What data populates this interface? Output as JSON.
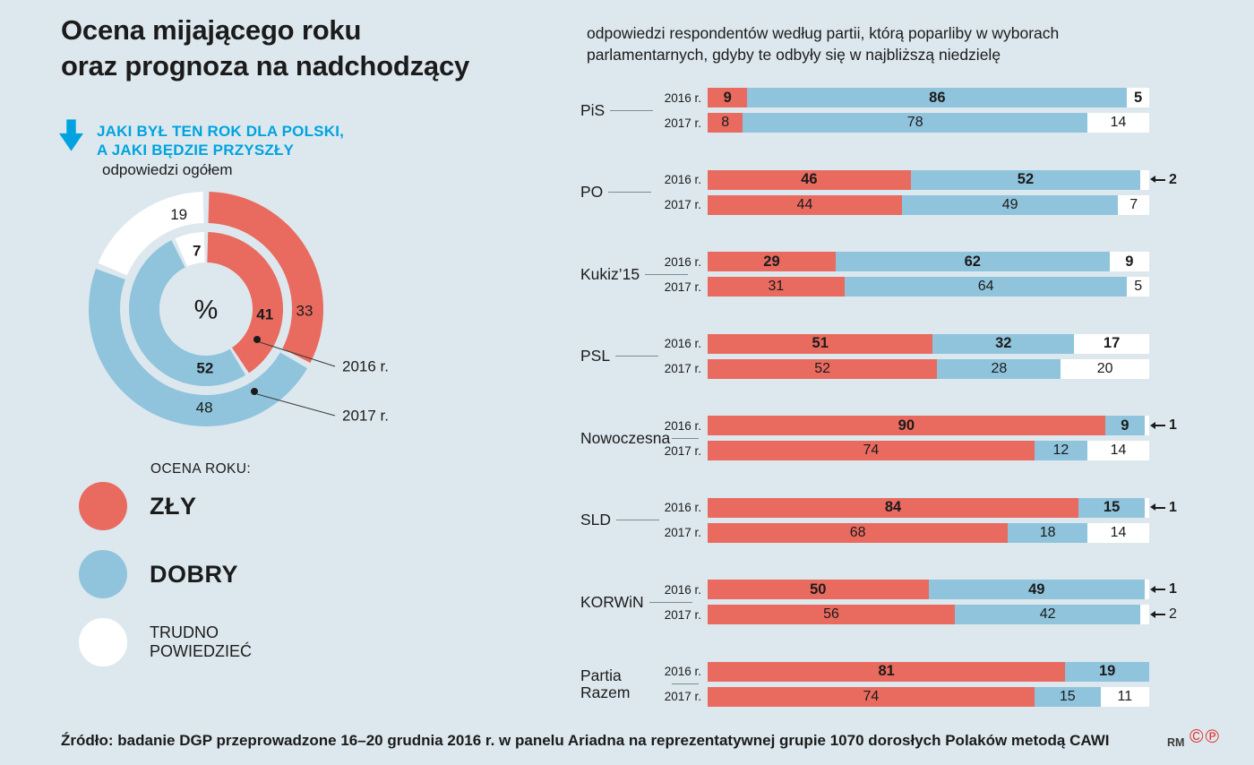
{
  "colors": {
    "background": "#dde8ee",
    "bad": "#e96a5f",
    "good": "#90c4dc",
    "unsure": "#ffffff",
    "accent": "#00a3e0",
    "text": "#1b1b1b",
    "marks_red": "#e0312d"
  },
  "header": {
    "title_line1": "Ocena mijającego roku",
    "title_line2": "oraz prognoza na nadchodzący",
    "question_line1": "JAKI BYŁ TEN ROK DLA POLSKI,",
    "question_line2": "A JAKI BĘDZIE PRZYSZŁY"
  },
  "legend": {
    "title": "OCENA ROKU:",
    "items": [
      {
        "label": "ZŁY",
        "color": "#e96a5f"
      },
      {
        "label": "DOBRY",
        "color": "#90c4dc"
      },
      {
        "label": "TRUDNO POWIEDZIEĆ",
        "color": "#ffffff"
      }
    ]
  },
  "chart_data": [
    {
      "type": "pie",
      "variant": "double_ring_donut",
      "title": "odpowiedzi ogółem",
      "center_label": "%",
      "unit": "%",
      "categories": [
        "ZŁY",
        "DOBRY",
        "TRUDNO POWIEDZIEĆ"
      ],
      "rings": [
        {
          "label": "2016 r.",
          "position": "inner",
          "values": [
            41,
            52,
            7
          ]
        },
        {
          "label": "2017 r.",
          "position": "outer",
          "values": [
            33,
            48,
            19
          ]
        }
      ]
    },
    {
      "type": "bar",
      "variant": "stacked_horizontal_100pct",
      "title": "odpowiedzi respondentów według partii, którą poparliby w wyborach parlamentarnych, gdyby te odbyły się w najbliższą niedzielę",
      "categories": [
        "ZŁY",
        "DOBRY",
        "TRUDNO POWIEDZIEĆ"
      ],
      "xlim": [
        0,
        100
      ],
      "unit": "%",
      "groups": [
        {
          "party": "PiS",
          "rows": [
            {
              "label": "2016 r.",
              "values": [
                9,
                86,
                5
              ]
            },
            {
              "label": "2017 r.",
              "values": [
                8,
                78,
                14
              ]
            }
          ]
        },
        {
          "party": "PO",
          "rows": [
            {
              "label": "2016 r.",
              "values": [
                46,
                52,
                2
              ]
            },
            {
              "label": "2017 r.",
              "values": [
                44,
                49,
                7
              ]
            }
          ]
        },
        {
          "party": "Kukiz’15",
          "rows": [
            {
              "label": "2016 r.",
              "values": [
                29,
                62,
                9
              ]
            },
            {
              "label": "2017 r.",
              "values": [
                31,
                64,
                5
              ]
            }
          ]
        },
        {
          "party": "PSL",
          "rows": [
            {
              "label": "2016 r.",
              "values": [
                51,
                32,
                17
              ]
            },
            {
              "label": "2017 r.",
              "values": [
                52,
                28,
                20
              ]
            }
          ]
        },
        {
          "party": "Nowoczesna",
          "rows": [
            {
              "label": "2016 r.",
              "values": [
                90,
                9,
                1
              ]
            },
            {
              "label": "2017 r.",
              "values": [
                74,
                12,
                14
              ]
            }
          ]
        },
        {
          "party": "SLD",
          "rows": [
            {
              "label": "2016 r.",
              "values": [
                84,
                15,
                1
              ]
            },
            {
              "label": "2017 r.",
              "values": [
                68,
                18,
                14
              ]
            }
          ]
        },
        {
          "party": "KORWiN",
          "rows": [
            {
              "label": "2016 r.",
              "values": [
                50,
                49,
                1
              ]
            },
            {
              "label": "2017 r.",
              "values": [
                56,
                42,
                2
              ]
            }
          ]
        },
        {
          "party": "Partia Razem",
          "rows": [
            {
              "label": "2016 r.",
              "values": [
                81,
                19,
                0
              ]
            },
            {
              "label": "2017 r.",
              "values": [
                74,
                15,
                11
              ]
            }
          ]
        }
      ]
    }
  ],
  "footer": {
    "source": "Źródło: badanie DGP przeprowadzone 16–20 grudnia 2016 r. w panelu Ariadna na reprezentatywnej grupie 1070 dorosłych Polaków metodą CAWI",
    "credit": "RM",
    "marks": "©℗"
  }
}
